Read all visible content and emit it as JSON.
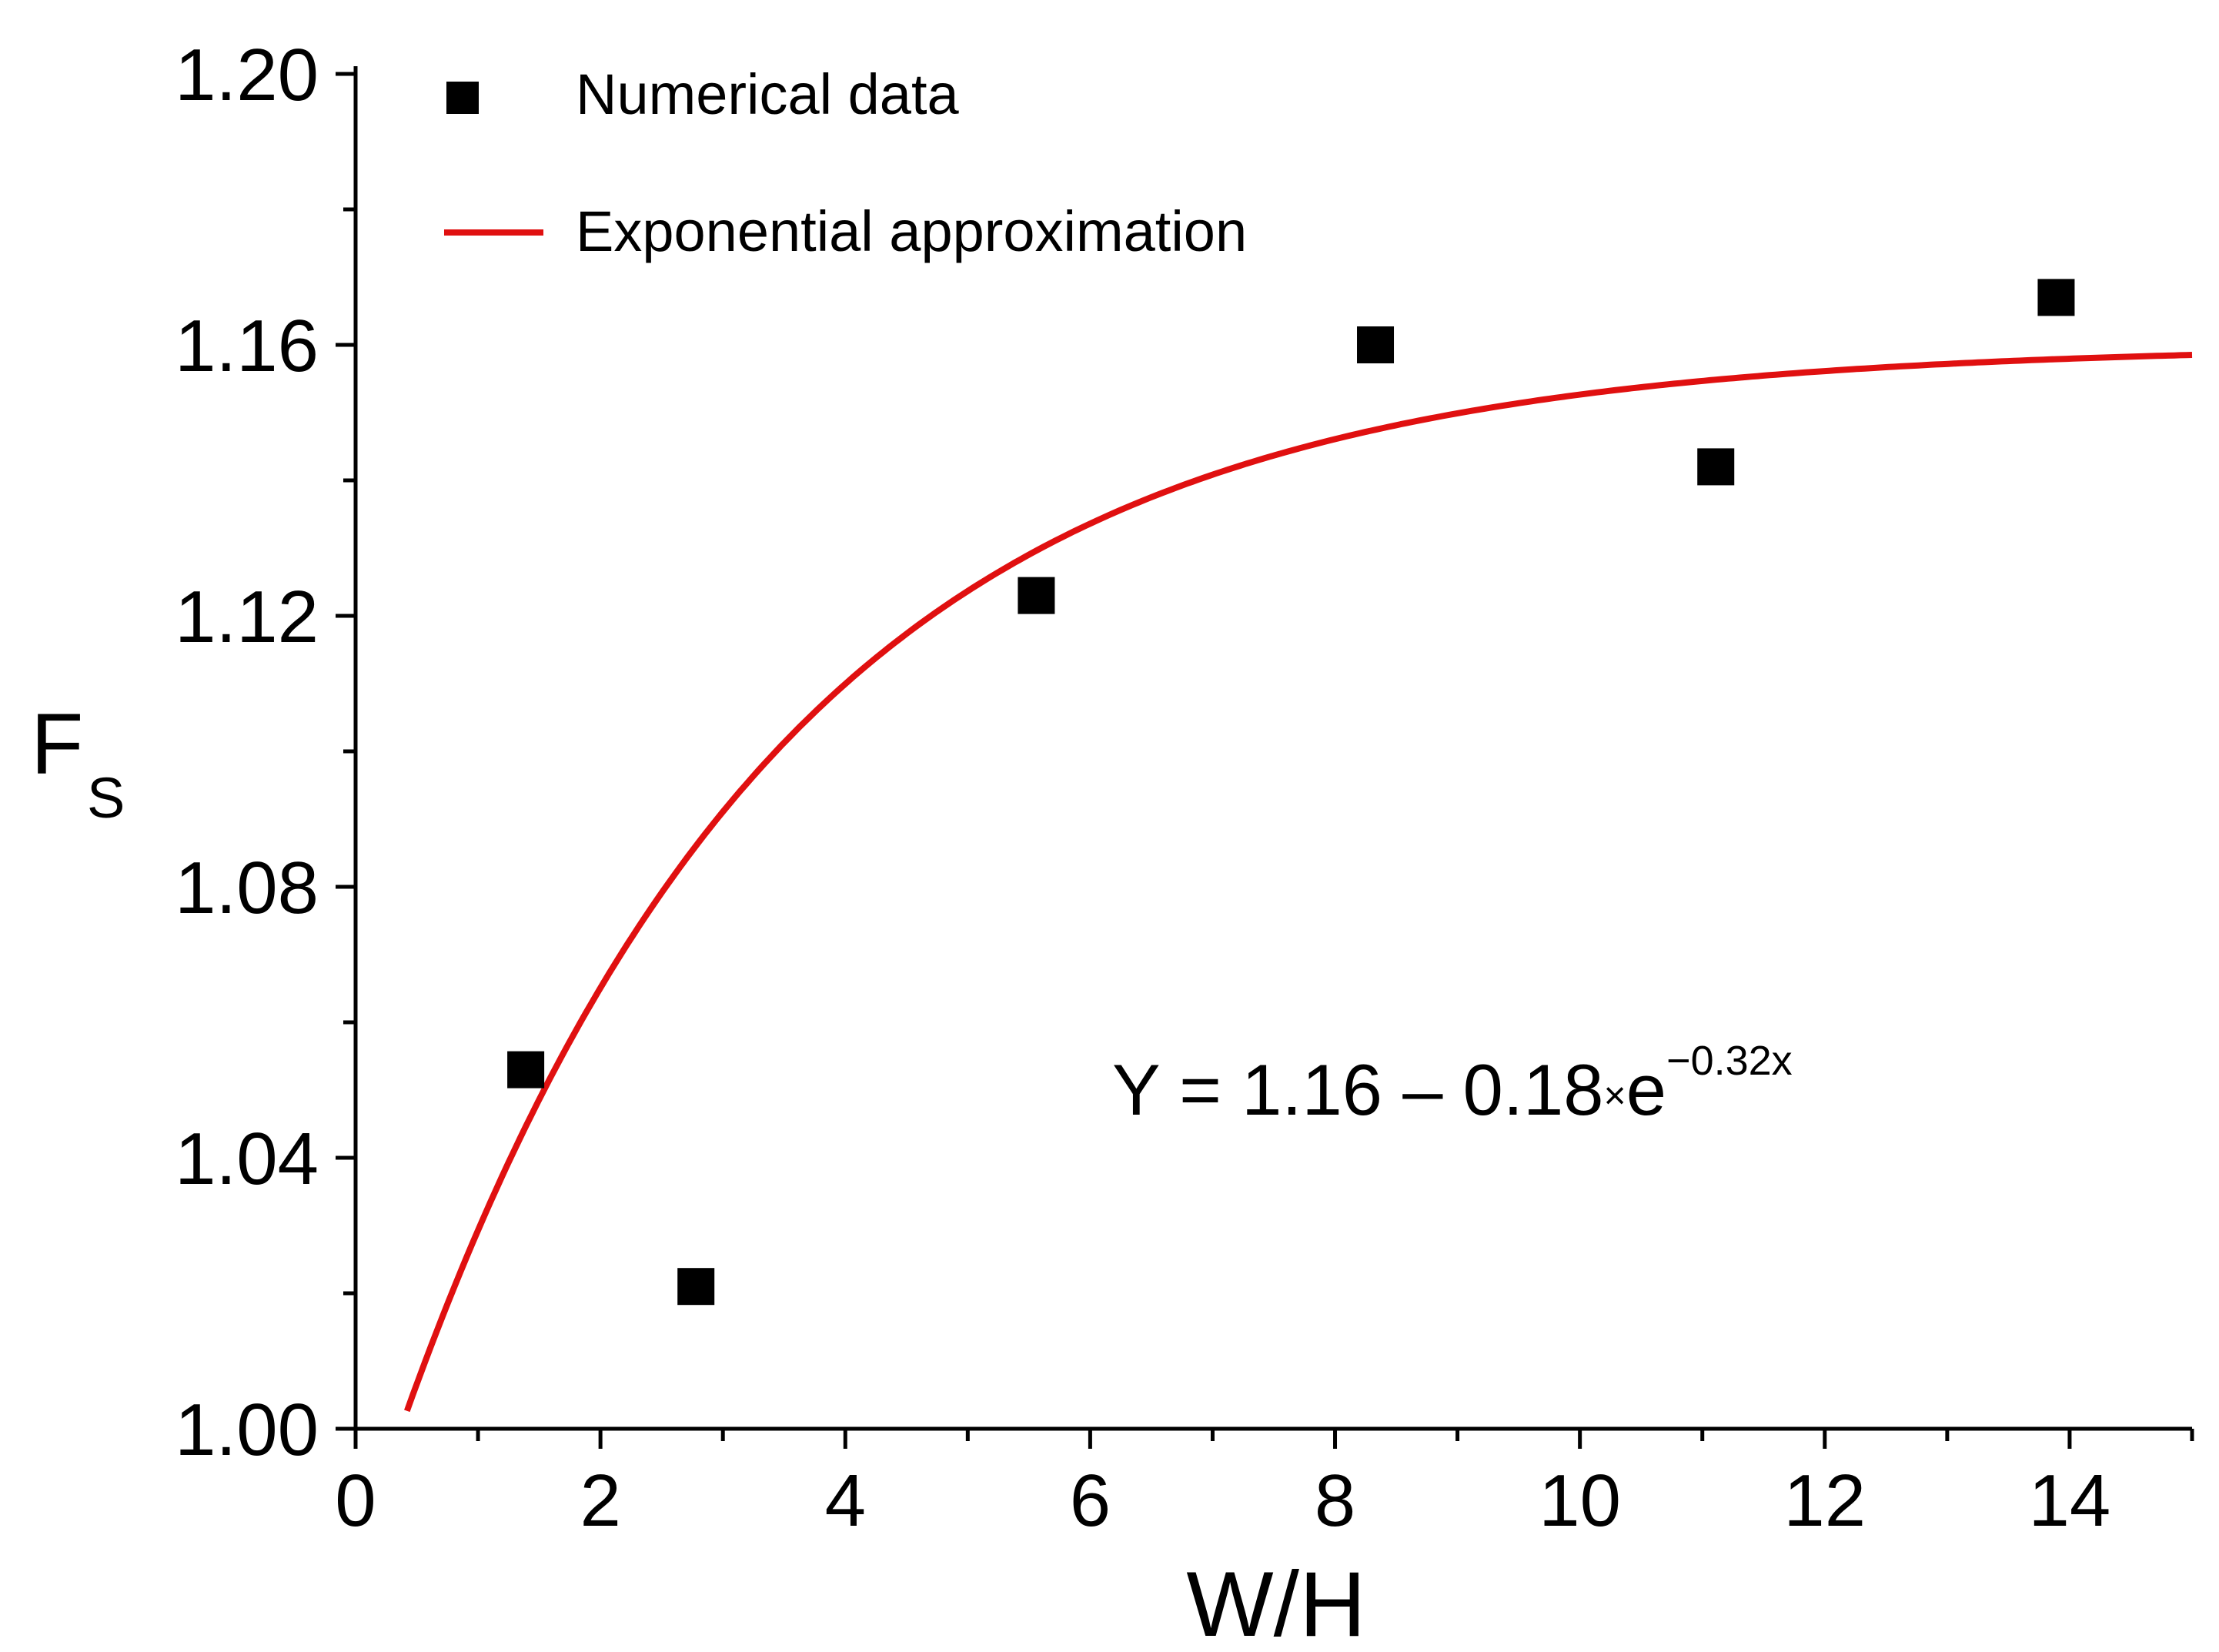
{
  "chart_data": {
    "type": "scatter",
    "xlabel": "W/H",
    "ylabel": "F",
    "ylabel_subscript": "S",
    "xlim": [
      0,
      15
    ],
    "ylim": [
      1.0,
      1.2
    ],
    "xticks": [
      0,
      2,
      4,
      6,
      8,
      10,
      12,
      14
    ],
    "xtick_labels": [
      "0",
      "2",
      "4",
      "6",
      "8",
      "10",
      "12",
      "14"
    ],
    "yticks": [
      1.0,
      1.04,
      1.08,
      1.12,
      1.16,
      1.2
    ],
    "ytick_labels": [
      "1.00",
      "1.04",
      "1.08",
      "1.12",
      "1.16",
      "1.20"
    ],
    "grid": false,
    "legend_position": "top-left",
    "series": [
      {
        "name": "Numerical data",
        "type": "scatter",
        "marker": "square",
        "color": "#000000",
        "x": [
          1.39,
          2.78,
          5.56,
          8.33,
          11.11,
          13.89
        ],
        "y": [
          1.053,
          1.021,
          1.123,
          1.16,
          1.142,
          1.167
        ]
      },
      {
        "name": "Exponential approximation",
        "type": "line",
        "color": "#e01010",
        "function": {
          "a": 1.16,
          "b": 0.18,
          "c": 0.32
        },
        "x_range": [
          0.42,
          15
        ]
      }
    ],
    "annotation": {
      "text_main": "Y = 1.16 – 0.18",
      "text_times": "×",
      "text_base": "e",
      "text_exponent": "−0.32x"
    }
  }
}
